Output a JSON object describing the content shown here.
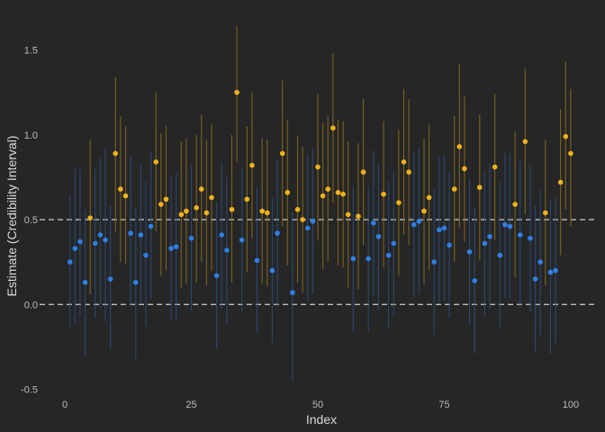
{
  "chart_data": {
    "type": "scatter",
    "title": "",
    "xlabel": "Index",
    "ylabel": "Estimate (Credibility Interval)",
    "xlim": [
      -5,
      105
    ],
    "ylim": [
      -0.55,
      1.72
    ],
    "xticks": [
      0,
      25,
      50,
      75,
      100
    ],
    "yticks": [
      -0.5,
      0.0,
      0.5,
      1.0,
      1.5
    ],
    "ytick_labels": [
      "-0.5",
      "0.0",
      "0.5",
      "1.0",
      "1.5"
    ],
    "reference_lines": [
      0.0,
      0.5
    ],
    "grid": false,
    "legend": "none",
    "colors": {
      "background": "#262626",
      "below": "#2f7fe6",
      "above": "#f2b21c",
      "reference": "#bfbfbf",
      "below_interval": "#2a4e80",
      "above_interval": "#8a6d1e"
    },
    "points": [
      {
        "x": 1,
        "y": 0.25,
        "lo": -0.13,
        "hi": 0.64
      },
      {
        "x": 2,
        "y": 0.33,
        "lo": -0.11,
        "hi": 0.8
      },
      {
        "x": 3,
        "y": 0.37,
        "lo": -0.07,
        "hi": 0.8
      },
      {
        "x": 4,
        "y": 0.13,
        "lo": -0.3,
        "hi": 0.56
      },
      {
        "x": 5,
        "y": 0.51,
        "lo": 0.06,
        "hi": 0.97
      },
      {
        "x": 6,
        "y": 0.36,
        "lo": -0.08,
        "hi": 0.8
      },
      {
        "x": 7,
        "y": 0.41,
        "lo": -0.02,
        "hi": 0.86
      },
      {
        "x": 8,
        "y": 0.38,
        "lo": -0.1,
        "hi": 0.92
      },
      {
        "x": 9,
        "y": 0.15,
        "lo": -0.26,
        "hi": 0.58
      },
      {
        "x": 10,
        "y": 0.89,
        "lo": 0.43,
        "hi": 1.34
      },
      {
        "x": 11,
        "y": 0.68,
        "lo": 0.25,
        "hi": 1.11
      },
      {
        "x": 12,
        "y": 0.64,
        "lo": 0.24,
        "hi": 1.05
      },
      {
        "x": 13,
        "y": 0.42,
        "lo": -0.01,
        "hi": 0.87
      },
      {
        "x": 14,
        "y": 0.13,
        "lo": -0.32,
        "hi": 0.57
      },
      {
        "x": 15,
        "y": 0.41,
        "lo": 0.0,
        "hi": 0.83
      },
      {
        "x": 16,
        "y": 0.29,
        "lo": -0.13,
        "hi": 0.72
      },
      {
        "x": 17,
        "y": 0.46,
        "lo": 0.03,
        "hi": 0.9
      },
      {
        "x": 18,
        "y": 0.84,
        "lo": 0.43,
        "hi": 1.25
      },
      {
        "x": 19,
        "y": 0.59,
        "lo": 0.17,
        "hi": 1.01
      },
      {
        "x": 20,
        "y": 0.62,
        "lo": 0.2,
        "hi": 1.05
      },
      {
        "x": 21,
        "y": 0.33,
        "lo": -0.1,
        "hi": 0.76
      },
      {
        "x": 22,
        "y": 0.34,
        "lo": -0.09,
        "hi": 0.78
      },
      {
        "x": 23,
        "y": 0.53,
        "lo": 0.1,
        "hi": 0.96
      },
      {
        "x": 24,
        "y": 0.55,
        "lo": 0.12,
        "hi": 0.98
      },
      {
        "x": 25,
        "y": 0.39,
        "lo": -0.04,
        "hi": 0.82
      },
      {
        "x": 26,
        "y": 0.57,
        "lo": 0.13,
        "hi": 1.0
      },
      {
        "x": 27,
        "y": 0.68,
        "lo": 0.25,
        "hi": 1.12
      },
      {
        "x": 28,
        "y": 0.54,
        "lo": 0.11,
        "hi": 0.97
      },
      {
        "x": 29,
        "y": 0.63,
        "lo": 0.2,
        "hi": 1.06
      },
      {
        "x": 30,
        "y": 0.17,
        "lo": -0.26,
        "hi": 0.6
      },
      {
        "x": 31,
        "y": 0.41,
        "lo": -0.02,
        "hi": 0.84
      },
      {
        "x": 32,
        "y": 0.32,
        "lo": -0.11,
        "hi": 0.75
      },
      {
        "x": 33,
        "y": 0.56,
        "lo": 0.13,
        "hi": 1.0
      },
      {
        "x": 34,
        "y": 1.25,
        "lo": 0.84,
        "hi": 1.64
      },
      {
        "x": 35,
        "y": 0.38,
        "lo": -0.05,
        "hi": 0.81
      },
      {
        "x": 36,
        "y": 0.62,
        "lo": 0.19,
        "hi": 1.05
      },
      {
        "x": 37,
        "y": 0.82,
        "lo": 0.39,
        "hi": 1.25
      },
      {
        "x": 38,
        "y": 0.26,
        "lo": -0.17,
        "hi": 0.69
      },
      {
        "x": 39,
        "y": 0.55,
        "lo": 0.12,
        "hi": 0.98
      },
      {
        "x": 40,
        "y": 0.54,
        "lo": 0.11,
        "hi": 0.97
      },
      {
        "x": 41,
        "y": 0.2,
        "lo": -0.23,
        "hi": 0.63
      },
      {
        "x": 42,
        "y": 0.42,
        "lo": -0.01,
        "hi": 0.85
      },
      {
        "x": 43,
        "y": 0.89,
        "lo": 0.46,
        "hi": 1.32
      },
      {
        "x": 44,
        "y": 0.66,
        "lo": 0.23,
        "hi": 1.09
      },
      {
        "x": 45,
        "y": 0.07,
        "lo": -0.45,
        "hi": 0.55
      },
      {
        "x": 46,
        "y": 0.56,
        "lo": 0.13,
        "hi": 0.99
      },
      {
        "x": 47,
        "y": 0.5,
        "lo": 0.07,
        "hi": 0.93
      },
      {
        "x": 48,
        "y": 0.45,
        "lo": 0.02,
        "hi": 0.88
      },
      {
        "x": 49,
        "y": 0.49,
        "lo": 0.06,
        "hi": 0.92
      },
      {
        "x": 50,
        "y": 0.81,
        "lo": 0.38,
        "hi": 1.24
      },
      {
        "x": 51,
        "y": 0.64,
        "lo": 0.21,
        "hi": 1.07
      },
      {
        "x": 52,
        "y": 0.68,
        "lo": 0.25,
        "hi": 1.11
      },
      {
        "x": 53,
        "y": 1.04,
        "lo": 0.6,
        "hi": 1.48
      },
      {
        "x": 54,
        "y": 0.66,
        "lo": 0.23,
        "hi": 1.09
      },
      {
        "x": 55,
        "y": 0.65,
        "lo": 0.22,
        "hi": 1.08
      },
      {
        "x": 56,
        "y": 0.53,
        "lo": 0.1,
        "hi": 0.96
      },
      {
        "x": 57,
        "y": 0.27,
        "lo": -0.16,
        "hi": 0.7
      },
      {
        "x": 58,
        "y": 0.52,
        "lo": 0.09,
        "hi": 0.95
      },
      {
        "x": 59,
        "y": 0.78,
        "lo": 0.35,
        "hi": 1.21
      },
      {
        "x": 60,
        "y": 0.27,
        "lo": -0.16,
        "hi": 0.7
      },
      {
        "x": 61,
        "y": 0.48,
        "lo": 0.05,
        "hi": 0.91
      },
      {
        "x": 62,
        "y": 0.4,
        "lo": -0.03,
        "hi": 0.83
      },
      {
        "x": 63,
        "y": 0.65,
        "lo": 0.22,
        "hi": 1.08
      },
      {
        "x": 64,
        "y": 0.29,
        "lo": -0.14,
        "hi": 0.72
      },
      {
        "x": 65,
        "y": 0.36,
        "lo": -0.07,
        "hi": 0.79
      },
      {
        "x": 66,
        "y": 0.6,
        "lo": 0.17,
        "hi": 1.03
      },
      {
        "x": 67,
        "y": 0.84,
        "lo": 0.41,
        "hi": 1.27
      },
      {
        "x": 68,
        "y": 0.78,
        "lo": 0.35,
        "hi": 1.21
      },
      {
        "x": 69,
        "y": 0.47,
        "lo": 0.04,
        "hi": 0.9
      },
      {
        "x": 70,
        "y": 0.49,
        "lo": 0.06,
        "hi": 0.92
      },
      {
        "x": 71,
        "y": 0.55,
        "lo": 0.12,
        "hi": 0.98
      },
      {
        "x": 72,
        "y": 0.63,
        "lo": 0.2,
        "hi": 1.06
      },
      {
        "x": 73,
        "y": 0.25,
        "lo": -0.18,
        "hi": 0.68
      },
      {
        "x": 74,
        "y": 0.44,
        "lo": 0.01,
        "hi": 0.87
      },
      {
        "x": 75,
        "y": 0.45,
        "lo": 0.02,
        "hi": 0.88
      },
      {
        "x": 76,
        "y": 0.35,
        "lo": -0.08,
        "hi": 0.78
      },
      {
        "x": 77,
        "y": 0.68,
        "lo": 0.25,
        "hi": 1.11
      },
      {
        "x": 78,
        "y": 0.93,
        "lo": 0.45,
        "hi": 1.42
      },
      {
        "x": 79,
        "y": 0.8,
        "lo": 0.37,
        "hi": 1.23
      },
      {
        "x": 80,
        "y": 0.31,
        "lo": -0.12,
        "hi": 0.74
      },
      {
        "x": 81,
        "y": 0.14,
        "lo": -0.29,
        "hi": 0.57
      },
      {
        "x": 82,
        "y": 0.69,
        "lo": 0.26,
        "hi": 1.12
      },
      {
        "x": 83,
        "y": 0.36,
        "lo": -0.07,
        "hi": 0.79
      },
      {
        "x": 84,
        "y": 0.4,
        "lo": -0.03,
        "hi": 0.83
      },
      {
        "x": 85,
        "y": 0.81,
        "lo": 0.38,
        "hi": 1.24
      },
      {
        "x": 86,
        "y": 0.29,
        "lo": -0.14,
        "hi": 0.72
      },
      {
        "x": 87,
        "y": 0.47,
        "lo": 0.04,
        "hi": 0.9
      },
      {
        "x": 88,
        "y": 0.46,
        "lo": 0.03,
        "hi": 0.89
      },
      {
        "x": 89,
        "y": 0.59,
        "lo": 0.16,
        "hi": 1.02
      },
      {
        "x": 90,
        "y": 0.41,
        "lo": -0.02,
        "hi": 0.84
      },
      {
        "x": 91,
        "y": 0.96,
        "lo": 0.53,
        "hi": 1.39
      },
      {
        "x": 92,
        "y": 0.39,
        "lo": -0.04,
        "hi": 0.82
      },
      {
        "x": 93,
        "y": 0.15,
        "lo": -0.28,
        "hi": 0.58
      },
      {
        "x": 94,
        "y": 0.25,
        "lo": -0.18,
        "hi": 0.68
      },
      {
        "x": 95,
        "y": 0.54,
        "lo": 0.11,
        "hi": 0.97
      },
      {
        "x": 96,
        "y": 0.19,
        "lo": -0.29,
        "hi": 0.62
      },
      {
        "x": 97,
        "y": 0.2,
        "lo": -0.23,
        "hi": 0.63
      },
      {
        "x": 98,
        "y": 0.72,
        "lo": 0.29,
        "hi": 1.15
      },
      {
        "x": 99,
        "y": 0.99,
        "lo": 0.56,
        "hi": 1.43
      },
      {
        "x": 100,
        "y": 0.89,
        "lo": 0.46,
        "hi": 1.27
      }
    ]
  }
}
